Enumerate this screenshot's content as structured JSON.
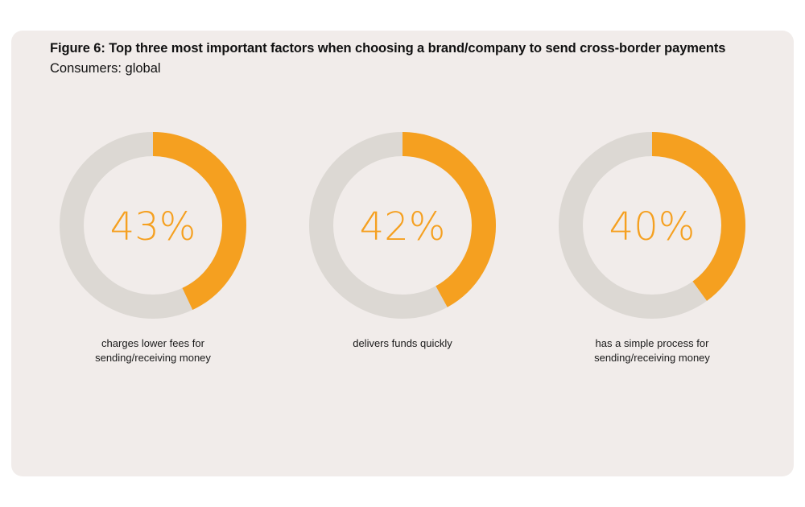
{
  "title": "Figure 6: Top three most important factors when choosing a brand/company to send cross-border payments",
  "subtitle": "Consumers: global",
  "colors": {
    "accent": "#f5a020",
    "track": "#dcd8d3",
    "card_background": "#f1ecea",
    "text": "#111111"
  },
  "chart_data": {
    "type": "pie",
    "variant": "donut",
    "title": "Figure 6: Top three most important factors when choosing a brand/company to send cross-border payments",
    "subtitle": "Consumers: global",
    "unit": "%",
    "items": [
      {
        "value": 43,
        "value_label": "43%",
        "label_lines": [
          "charges lower fees for",
          "sending/receiving money"
        ]
      },
      {
        "value": 42,
        "value_label": "42%",
        "label_lines": [
          "delivers funds quickly"
        ]
      },
      {
        "value": 40,
        "value_label": "40%",
        "label_lines": [
          "has a simple process for",
          "sending/receiving money"
        ]
      }
    ]
  }
}
